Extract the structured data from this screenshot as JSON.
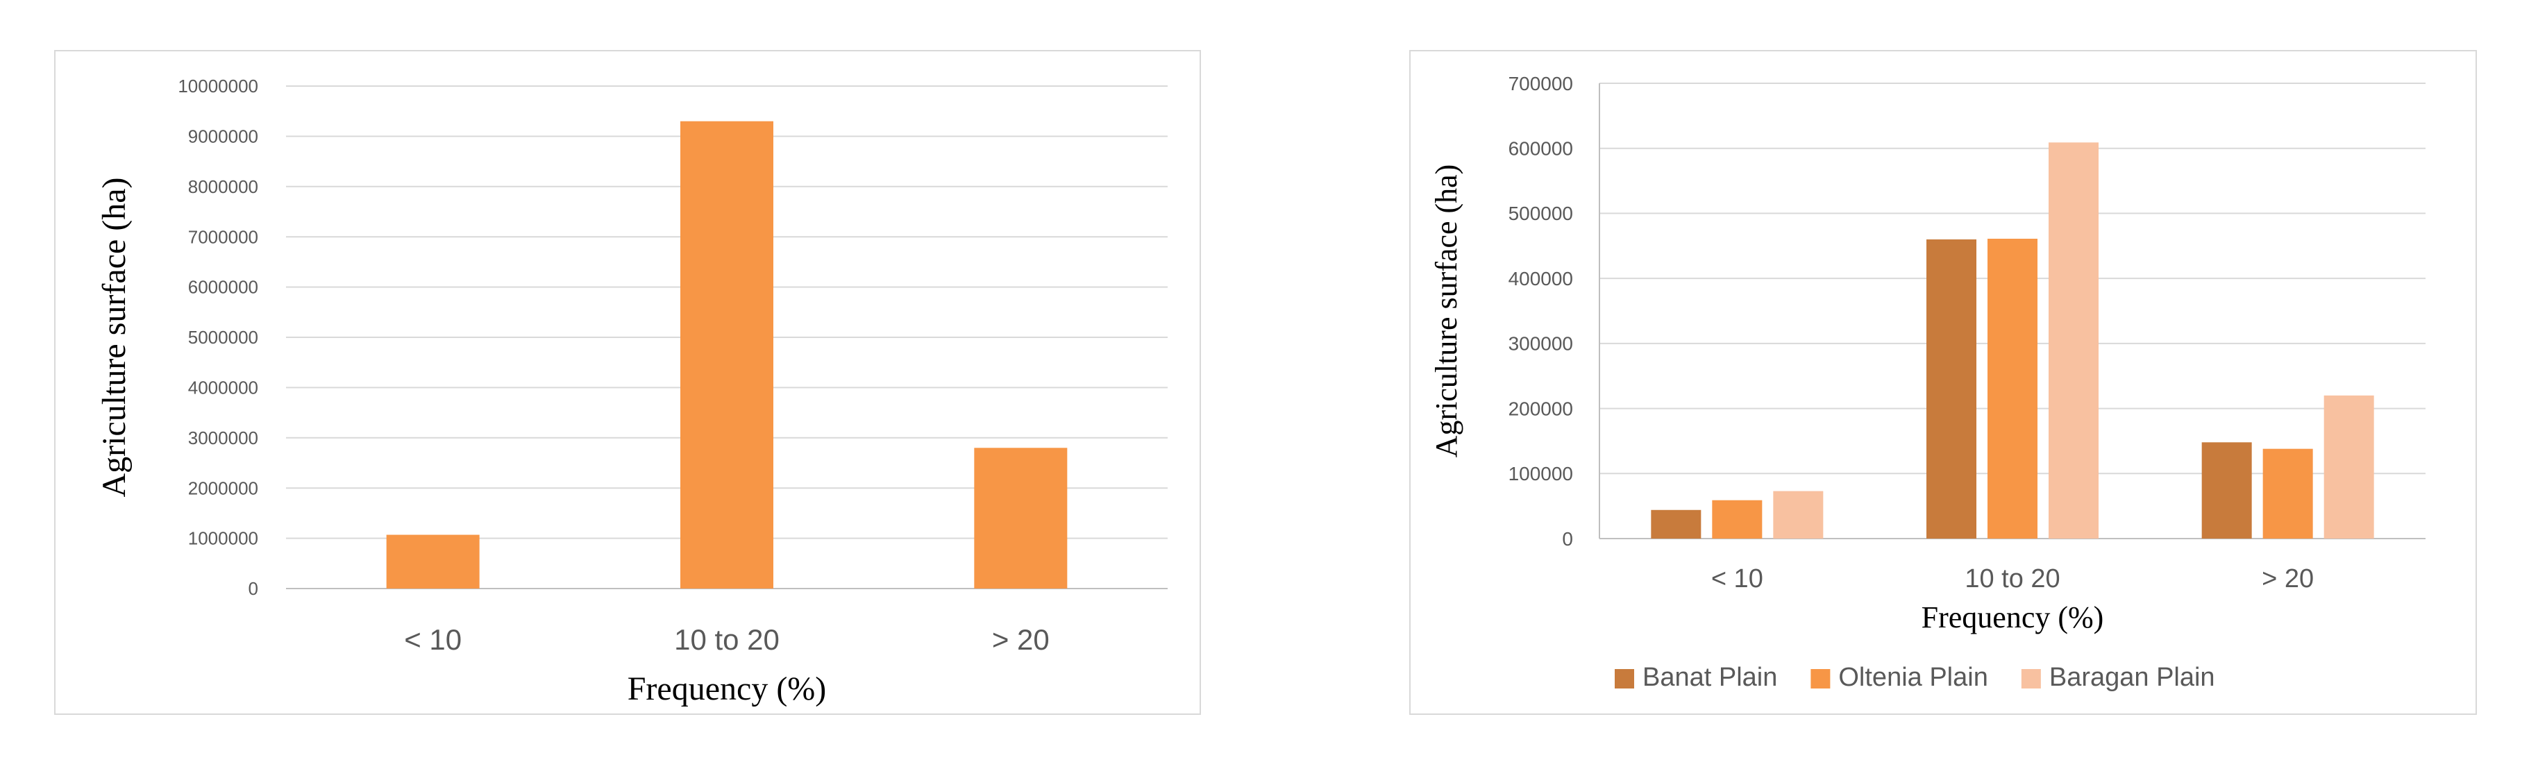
{
  "chart_data": [
    {
      "type": "bar",
      "categories": [
        "< 10",
        "10 to 20",
        "> 20"
      ],
      "series": [
        {
          "values": [
            1070000,
            9300000,
            2800000
          ],
          "color": "#f79646"
        }
      ],
      "xlabel": "Frequency (%)",
      "ylabel": "Agriculture surface (ha)",
      "ylim": [
        0,
        10000000
      ],
      "yticks": [
        0,
        1000000,
        2000000,
        3000000,
        4000000,
        5000000,
        6000000,
        7000000,
        8000000,
        9000000,
        10000000
      ],
      "ytick_labels": [
        "0",
        "1000000",
        "2000000",
        "3000000",
        "4000000",
        "5000000",
        "6000000",
        "7000000",
        "8000000",
        "9000000",
        "10000000"
      ],
      "grid": true,
      "legend": "none"
    },
    {
      "type": "bar",
      "categories": [
        "< 10",
        "10 to 20",
        "> 20"
      ],
      "series": [
        {
          "name": "Banat Plain",
          "values": [
            44000,
            460000,
            148000
          ],
          "color": "#c87b3c"
        },
        {
          "name": "Oltenia Plain",
          "values": [
            59000,
            461000,
            138000
          ],
          "color": "#f79646"
        },
        {
          "name": "Baragan Plain",
          "values": [
            73000,
            609000,
            220000
          ],
          "color": "#f8c1a0"
        }
      ],
      "xlabel": "Frequency (%)",
      "ylabel": "Agriculture surface (ha)",
      "ylim": [
        0,
        700000
      ],
      "yticks": [
        0,
        100000,
        200000,
        300000,
        400000,
        500000,
        600000,
        700000
      ],
      "ytick_labels": [
        "0",
        "100000",
        "200000",
        "300000",
        "400000",
        "500000",
        "600000",
        "700000"
      ],
      "grid": true,
      "legend": "bottom"
    }
  ]
}
